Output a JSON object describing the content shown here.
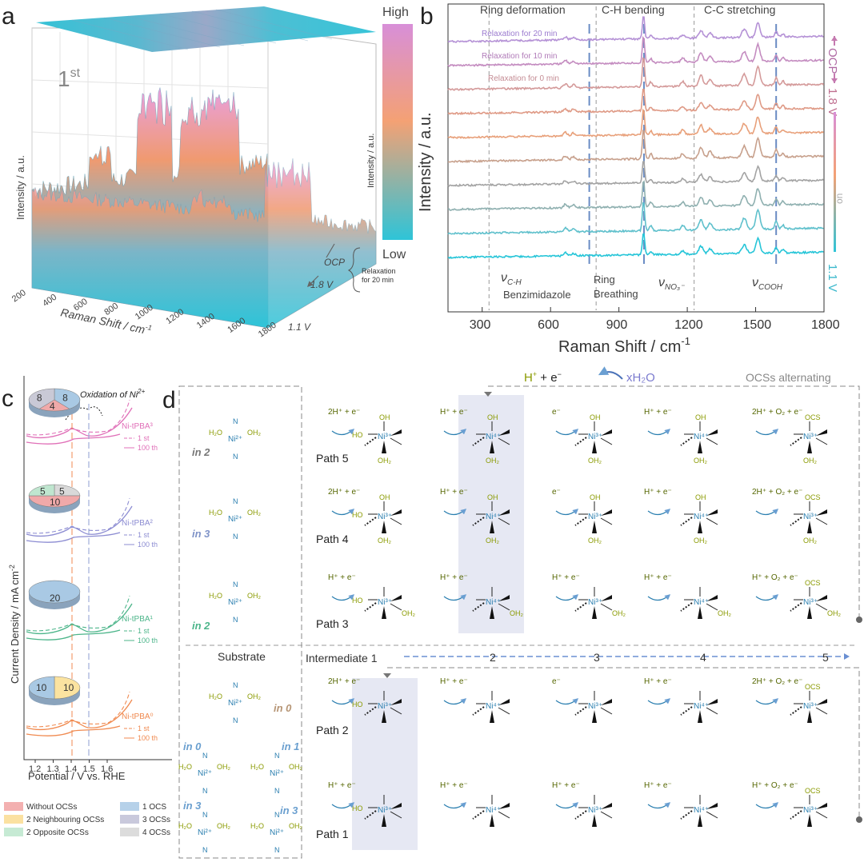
{
  "panels": {
    "a": {
      "letter": "a",
      "cycle_label": "1",
      "cycle_sup": "st",
      "ylabel": "Intensity / a.u.",
      "xlabel": "Raman Shift / cm",
      "xlabel_sup": "-1",
      "xticks": [
        "200",
        "400",
        "600",
        "800",
        "1000",
        "1200",
        "1400",
        "1600",
        "1800"
      ],
      "ocp_label": "OCP",
      "v18_label": "1.8 V",
      "v11_label": "1.1 V",
      "relax_line1": "Relaxation",
      "relax_line2": "for 20 min",
      "colorbar": {
        "high": "High",
        "low": "Low",
        "label": "Intensity / a.u.",
        "colors": [
          "#2ec4d8",
          "#f4a174",
          "#d88fd8"
        ]
      }
    },
    "b": {
      "letter": "b",
      "ylabel": "Intensity / a.u.",
      "xlabel": "Raman Shift / cm",
      "xlabel_sup": "-1",
      "xticks": [
        "300",
        "600",
        "900",
        "1200",
        "1500",
        "1800"
      ],
      "xlim": [
        150,
        1800
      ],
      "regions": [
        "Ring deformation",
        "C-H bending",
        "C-C stretching"
      ],
      "region_bounds": [
        330,
        800,
        1230
      ],
      "marker_positions": [
        770,
        1010,
        1590
      ],
      "relax_labels": [
        "Relaxation for 20 min",
        "Relaxation for 10 min",
        "Relaxation for 0 min"
      ],
      "bottom_labels": {
        "nu": "ν",
        "ch_sub": "C-H",
        "benz": "Benzimidazole",
        "ring1": "Ring",
        "ring2": "Breathing",
        "no3_sub": "NO₃⁻",
        "cooh_sub": "COOH"
      },
      "side_labels": {
        "ocp": "OCP",
        "v18": "1.8 V",
        "on": "on",
        "v11": "1.1 V"
      },
      "trace_colors": [
        "#b592d6",
        "#c48cc0",
        "#d49a9a",
        "#df9a86",
        "#e8a07a",
        "#c7a08c",
        "#a3a3a3",
        "#8fb0b0",
        "#5fc0cc",
        "#26c5d8"
      ],
      "peaks": [
        {
          "x": 1008,
          "h": 38,
          "w": 5
        },
        {
          "x": 1510,
          "h": 24,
          "w": 9
        },
        {
          "x": 1450,
          "h": 14,
          "w": 10
        },
        {
          "x": 1260,
          "h": 13,
          "w": 9
        },
        {
          "x": 1300,
          "h": 8,
          "w": 9
        },
        {
          "x": 1590,
          "h": 9,
          "w": 6
        },
        {
          "x": 1180,
          "h": 6,
          "w": 8
        },
        {
          "x": 1040,
          "h": 6,
          "w": 6
        },
        {
          "x": 665,
          "h": 5,
          "w": 8
        },
        {
          "x": 700,
          "h": 4,
          "w": 8
        },
        {
          "x": 1620,
          "h": 5,
          "w": 6
        }
      ]
    },
    "c": {
      "letter": "c",
      "ylabel": "Current Density / mA cm",
      "ylabel_sup": "-2",
      "xlabel": "Potential / V vs. RHE",
      "xticks": [
        "1.2",
        "1.3",
        "1.4",
        "1.5",
        "1.6"
      ],
      "oxidation_label": "Oxidation of  Ni",
      "oxidation_sup": "2+",
      "legend_first": "1 st",
      "legend_100": "100 th",
      "samples": [
        {
          "name": "Ni-tPBA³",
          "color": "#e070b8",
          "pie_values": [
            "8",
            "4",
            "8"
          ],
          "pie_colors": [
            "#a9c9e4",
            "#f0a9a9",
            "#c9c9d6"
          ]
        },
        {
          "name": "Ni-tPBA²",
          "color": "#8c8cd2",
          "pie_values": [
            "5",
            "10",
            "5"
          ],
          "pie_colors": [
            "#d9d9d9",
            "#f0a9a9",
            "#bfe6cf"
          ]
        },
        {
          "name": "Ni-tPBA¹",
          "color": "#4cb58a",
          "pie_values": [
            "20"
          ],
          "pie_colors": [
            "#a9c9e4"
          ]
        },
        {
          "name": "Ni-tPBA⁰",
          "color": "#f08a50",
          "pie_values": [
            "10",
            "10"
          ],
          "pie_colors": [
            "#fbe3a0",
            "#a9c9e4"
          ]
        }
      ],
      "legend": [
        {
          "label": "Without OCSs",
          "color": "#f3b0b0"
        },
        {
          "label": "1 OCS",
          "color": "#b6d1e9"
        },
        {
          "label": "2 Neighbouring OCSs",
          "color": "#fbe1a1"
        },
        {
          "label": "3 OCSs",
          "color": "#c9c9dc"
        },
        {
          "label": "2 Opposite OCSs",
          "color": "#c6ead4"
        },
        {
          "label": "4 OCSs",
          "color": "#dcdcdc"
        }
      ]
    },
    "d": {
      "letter": "d",
      "header_proton": "H",
      "header_electron": "e",
      "header_water": "xH₂O",
      "ocs_alternating": "OCSs alternating",
      "substrate": "Substrate",
      "intermediates": [
        "Intermediate 1",
        "2",
        "3",
        "4",
        "5"
      ],
      "paths": [
        "Path 5",
        "Path 4",
        "Path 3",
        "Path 2",
        "Path 1"
      ],
      "in_labels": [
        "in 2",
        "in 3",
        "in 2",
        "in 0",
        "in 0",
        "in 1",
        "in 3",
        "in 3"
      ],
      "step_labels": [
        "2H⁺ + e⁻",
        "H⁺ + e⁻",
        "e⁻",
        "H⁺ + e⁻",
        "2H⁺ + O₂ + e⁻",
        "H⁺ + e⁻",
        "H⁺ + O₂ + e⁻"
      ],
      "species": [
        "Ni²⁺",
        "Ni³⁺",
        "Ni⁴⁺",
        "OCS",
        "OH",
        "OH₂",
        "H₂O",
        "HO",
        "N",
        "O",
        "H₂O"
      ]
    }
  }
}
